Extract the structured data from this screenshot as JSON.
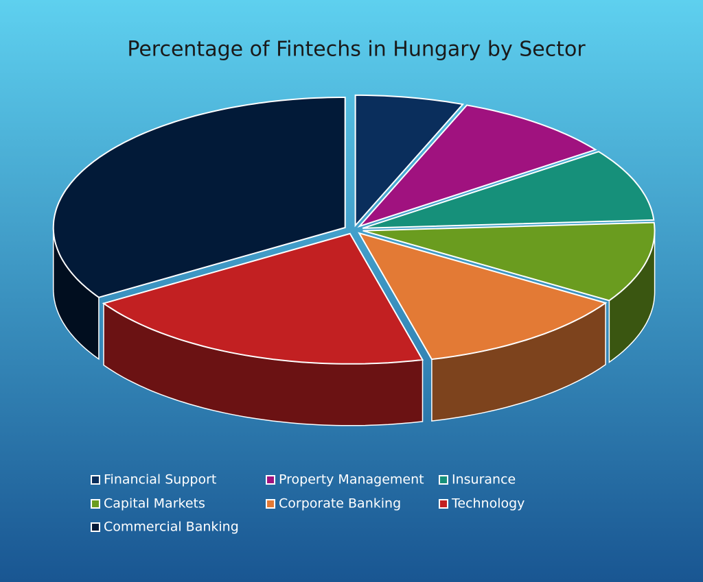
{
  "chart_data": {
    "type": "pie",
    "title": "Percentage of Fintechs in Hungary by Sector",
    "categories": [
      "Financial Support",
      "Property Management",
      "Insurance",
      "Capital Markets",
      "Corporate Banking",
      "Technology",
      "Commercial Banking"
    ],
    "values": [
      6,
      9,
      9,
      10,
      12,
      20,
      34
    ],
    "colors": [
      "#0a2e5c",
      "#a0127f",
      "#16907a",
      "#6a9c1f",
      "#e37a35",
      "#c22022",
      "#021a38"
    ]
  }
}
